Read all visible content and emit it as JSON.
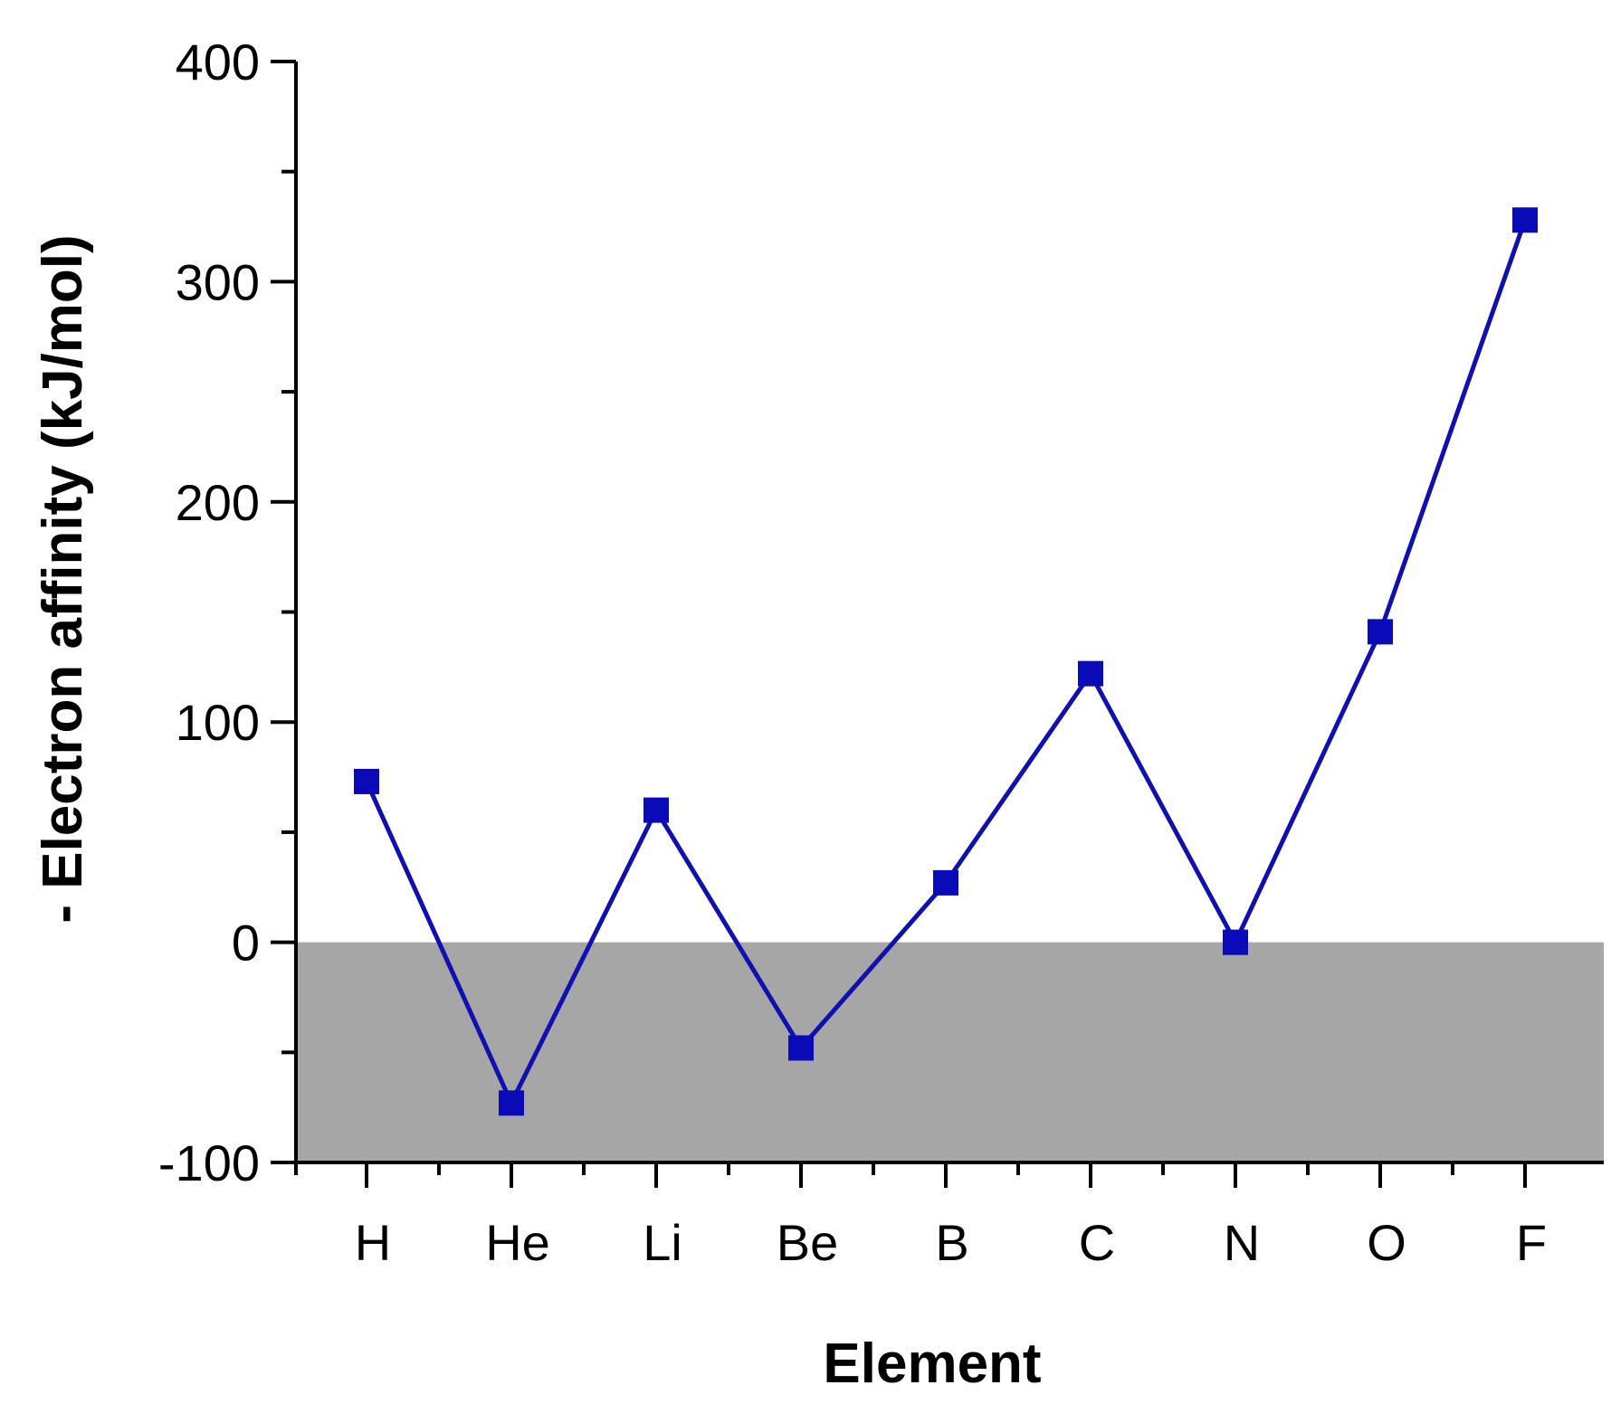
{
  "chart_data": {
    "type": "line",
    "title": "",
    "xlabel": "Element",
    "ylabel": "- Electron affinity (kJ/mol)",
    "categories": [
      "H",
      "He",
      "Li",
      "Be",
      "B",
      "C",
      "N",
      "O",
      "F"
    ],
    "series": [
      {
        "values": [
          73,
          -73,
          60,
          -48,
          27,
          122,
          0,
          141,
          328
        ]
      }
    ],
    "ylim": [
      -100,
      400
    ],
    "yticks": [
      -100,
      0,
      100,
      200,
      300,
      400
    ],
    "ytick_labels": [
      "-100",
      "0",
      "100",
      "200",
      "300",
      "400"
    ],
    "yminor_step": 50,
    "shaded_region": {
      "from": -100,
      "to": 0,
      "color": "#a6a6a6"
    },
    "grid": false,
    "legend": "none",
    "line_color": "#1010b0",
    "marker_color": "#0a0ab8",
    "marker": "square"
  }
}
